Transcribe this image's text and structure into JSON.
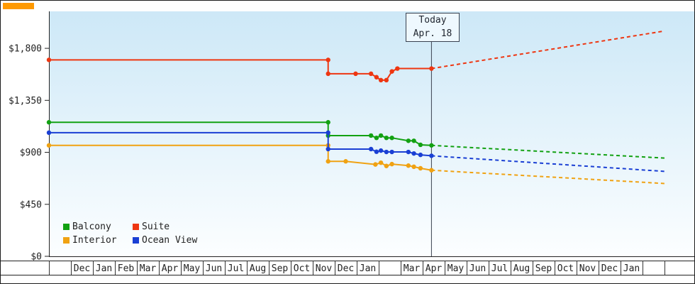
{
  "page": {
    "background": "#ffffff",
    "border_color": "#1c1c1c",
    "top_left_fragment_color": "#ff9900"
  },
  "chart_data": {
    "type": "line",
    "title": "",
    "plot_bg_top": "#cde8f7",
    "plot_bg_bottom": "#fcfeff",
    "grid": false,
    "legend_position": "bottom-left",
    "y_axis": {
      "tick_labels": [
        "$0",
        "$450",
        "$900",
        "$1,350",
        "$1,800"
      ],
      "tick_values": [
        0,
        450,
        900,
        1350,
        1800
      ],
      "ylim": [
        0,
        2120
      ]
    },
    "x_axis": {
      "month_cells": [
        "",
        "Dec",
        "Jan",
        "Feb",
        "Mar",
        "Apr",
        "May",
        "Jun",
        "Jul",
        "Aug",
        "Sep",
        "Oct",
        "Nov",
        "Dec",
        "Jan",
        "",
        "Mar",
        "Apr",
        "May",
        "Jun",
        "Jul",
        "Aug",
        "Sep",
        "Oct",
        "Nov",
        "Dec",
        "Jan",
        ""
      ]
    },
    "annotation": {
      "line1": "Today",
      "line2": "Apr. 18",
      "x": 17.4
    },
    "series": [
      {
        "name": "Balcony",
        "color": "#12a112",
        "solid": [
          [
            0,
            1160
          ],
          [
            12.7,
            1160
          ],
          [
            12.7,
            1045
          ],
          [
            14.65,
            1045
          ],
          [
            14.9,
            1025
          ],
          [
            15.1,
            1045
          ],
          [
            15.35,
            1025
          ],
          [
            15.6,
            1025
          ],
          [
            16.35,
            1000
          ],
          [
            16.6,
            1000
          ],
          [
            16.9,
            965
          ],
          [
            17.4,
            960
          ]
        ],
        "dashed_end": [
          28,
          850
        ]
      },
      {
        "name": "Suite",
        "color": "#ee3611",
        "solid": [
          [
            0,
            1700
          ],
          [
            12.7,
            1700
          ],
          [
            12.7,
            1580
          ],
          [
            13.95,
            1580
          ],
          [
            14.65,
            1580
          ],
          [
            14.9,
            1550
          ],
          [
            15.1,
            1525
          ],
          [
            15.35,
            1525
          ],
          [
            15.6,
            1600
          ],
          [
            15.85,
            1625
          ],
          [
            17.4,
            1625
          ]
        ],
        "dashed_end": [
          28,
          1950
        ]
      },
      {
        "name": "Interior",
        "color": "#f0a212",
        "solid": [
          [
            0,
            960
          ],
          [
            12.7,
            960
          ],
          [
            12.7,
            822
          ],
          [
            13.5,
            822
          ],
          [
            14.85,
            795
          ],
          [
            15.1,
            810
          ],
          [
            15.35,
            782
          ],
          [
            15.6,
            798
          ],
          [
            16.35,
            785
          ],
          [
            16.6,
            775
          ],
          [
            16.9,
            762
          ],
          [
            17.4,
            745
          ]
        ],
        "dashed_end": [
          28,
          630
        ]
      },
      {
        "name": "Ocean View",
        "color": "#1a3fd4",
        "solid": [
          [
            0,
            1070
          ],
          [
            12.7,
            1070
          ],
          [
            12.7,
            928
          ],
          [
            14.65,
            928
          ],
          [
            14.9,
            905
          ],
          [
            15.1,
            915
          ],
          [
            15.35,
            903
          ],
          [
            15.6,
            903
          ],
          [
            16.35,
            903
          ],
          [
            16.6,
            890
          ],
          [
            16.9,
            878
          ],
          [
            17.4,
            870
          ]
        ],
        "dashed_end": [
          28,
          735
        ]
      }
    ]
  }
}
